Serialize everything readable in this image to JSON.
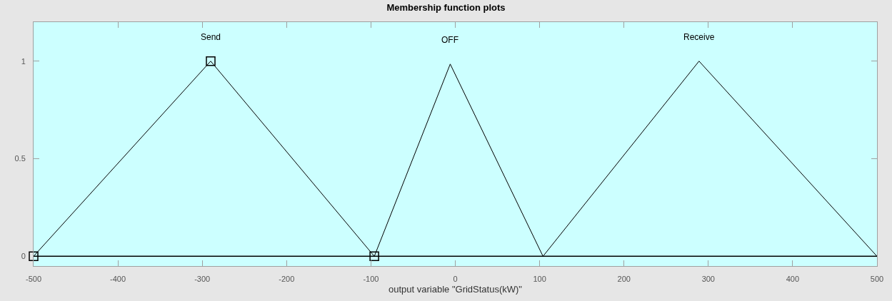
{
  "chart_data": {
    "type": "line",
    "title": "Membership function plots",
    "xlabel": "output variable \"GridStatus(kW)\"",
    "series": [
      {
        "name": "Send",
        "color": "#000000",
        "x": [
          -500,
          -290,
          -96
        ],
        "values": [
          0,
          1,
          0
        ],
        "marker": "square"
      },
      {
        "name": "OFF",
        "color": "#000000",
        "x": [
          -96,
          -6,
          104
        ],
        "values": [
          0,
          0.985,
          0
        ]
      },
      {
        "name": "Receive",
        "color": "#000000",
        "x": [
          104,
          289,
          500
        ],
        "values": [
          0,
          1,
          0
        ]
      }
    ],
    "xlim": [
      -500,
      500
    ],
    "xticks": [
      -500,
      -400,
      -300,
      -200,
      -100,
      0,
      100,
      200,
      300,
      400,
      500
    ],
    "ylim": [
      -0.05,
      1.2
    ],
    "yticks": [
      0,
      0.5,
      1
    ],
    "ref_lines": [
      {
        "axis": "y",
        "value": 0,
        "color": "#000000"
      }
    ],
    "grid": false,
    "legend": false,
    "line_style": "solid"
  }
}
